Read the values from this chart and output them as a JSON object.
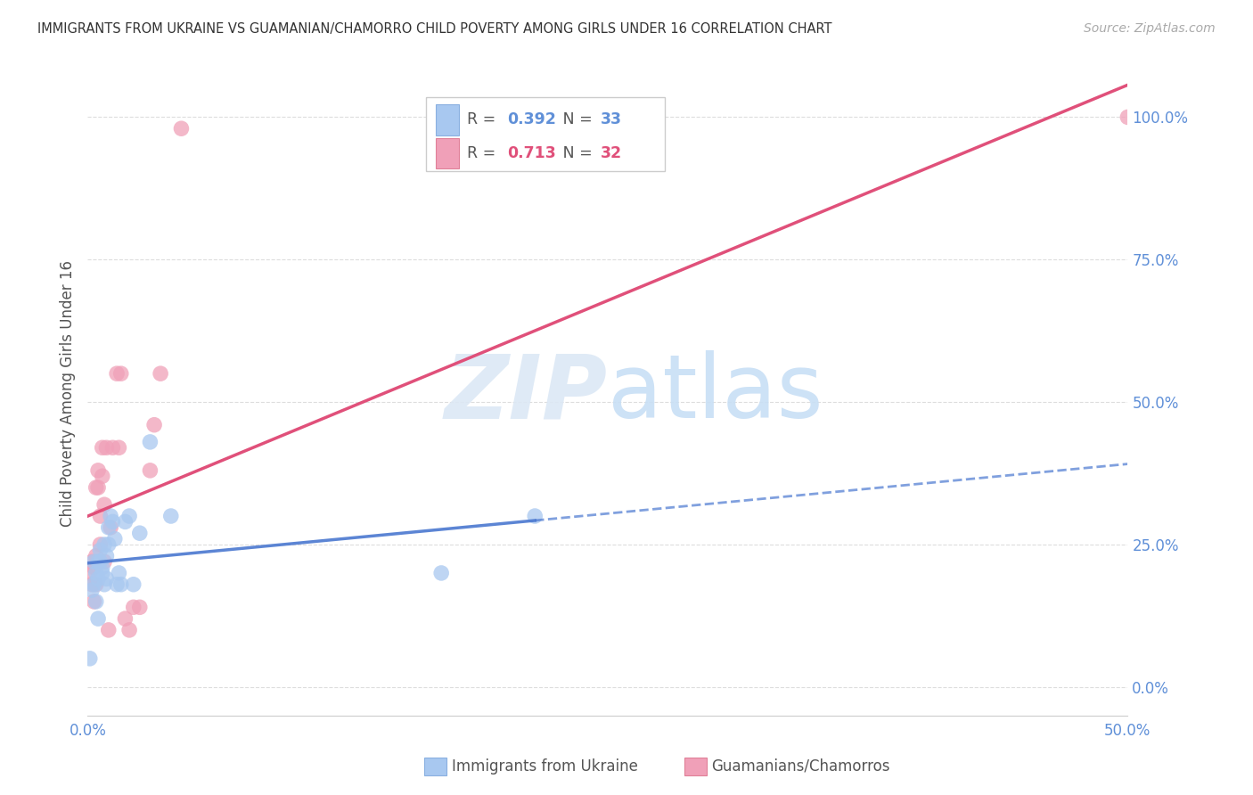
{
  "title": "IMMIGRANTS FROM UKRAINE VS GUAMANIAN/CHAMORRO CHILD POVERTY AMONG GIRLS UNDER 16 CORRELATION CHART",
  "source": "Source: ZipAtlas.com",
  "ylabel": "Child Poverty Among Girls Under 16",
  "xlim": [
    0.0,
    0.5
  ],
  "ylim": [
    -0.05,
    1.08
  ],
  "yticks_right": [
    0.0,
    0.25,
    0.5,
    0.75,
    1.0
  ],
  "ytick_labels_right": [
    "0.0%",
    "25.0%",
    "50.0%",
    "75.0%",
    "100.0%"
  ],
  "xticks": [
    0.0,
    0.1,
    0.2,
    0.3,
    0.4,
    0.5
  ],
  "xtick_labels": [
    "0.0%",
    "",
    "",
    "",
    "",
    "50.0%"
  ],
  "ukraine_color": "#a8c8f0",
  "chamorro_color": "#f0a0b8",
  "ukraine_line_color": "#4a78d0",
  "chamorro_line_color": "#e0507a",
  "watermark_color": "#ddeeff",
  "bg_color": "#ffffff",
  "grid_color": "#dddddd",
  "title_color": "#333333",
  "axis_label_color": "#6090d8",
  "chamorro_legend_color": "#e0507a",
  "ukraine_x": [
    0.001,
    0.002,
    0.003,
    0.003,
    0.004,
    0.004,
    0.005,
    0.005,
    0.005,
    0.006,
    0.006,
    0.007,
    0.007,
    0.008,
    0.008,
    0.009,
    0.009,
    0.01,
    0.01,
    0.011,
    0.012,
    0.013,
    0.014,
    0.015,
    0.016,
    0.018,
    0.02,
    0.022,
    0.025,
    0.03,
    0.04,
    0.17,
    0.215
  ],
  "ukraine_y": [
    0.05,
    0.17,
    0.18,
    0.22,
    0.2,
    0.15,
    0.22,
    0.19,
    0.12,
    0.24,
    0.22,
    0.21,
    0.2,
    0.18,
    0.25,
    0.19,
    0.23,
    0.25,
    0.28,
    0.3,
    0.29,
    0.26,
    0.18,
    0.2,
    0.18,
    0.29,
    0.3,
    0.18,
    0.27,
    0.43,
    0.3,
    0.2,
    0.3
  ],
  "chamorro_x": [
    0.001,
    0.002,
    0.002,
    0.003,
    0.003,
    0.004,
    0.004,
    0.004,
    0.005,
    0.005,
    0.006,
    0.006,
    0.007,
    0.007,
    0.008,
    0.008,
    0.009,
    0.01,
    0.011,
    0.012,
    0.014,
    0.015,
    0.016,
    0.018,
    0.02,
    0.022,
    0.025,
    0.03,
    0.032,
    0.035,
    0.045,
    0.5
  ],
  "chamorro_y": [
    0.2,
    0.18,
    0.22,
    0.15,
    0.21,
    0.23,
    0.18,
    0.35,
    0.35,
    0.38,
    0.25,
    0.3,
    0.42,
    0.37,
    0.22,
    0.32,
    0.42,
    0.1,
    0.28,
    0.42,
    0.55,
    0.42,
    0.55,
    0.12,
    0.1,
    0.14,
    0.14,
    0.38,
    0.46,
    0.55,
    0.98,
    1.0
  ],
  "legend_ukraine_r": "0.392",
  "legend_ukraine_n": "33",
  "legend_chamorro_r": "0.713",
  "legend_chamorro_n": "32"
}
